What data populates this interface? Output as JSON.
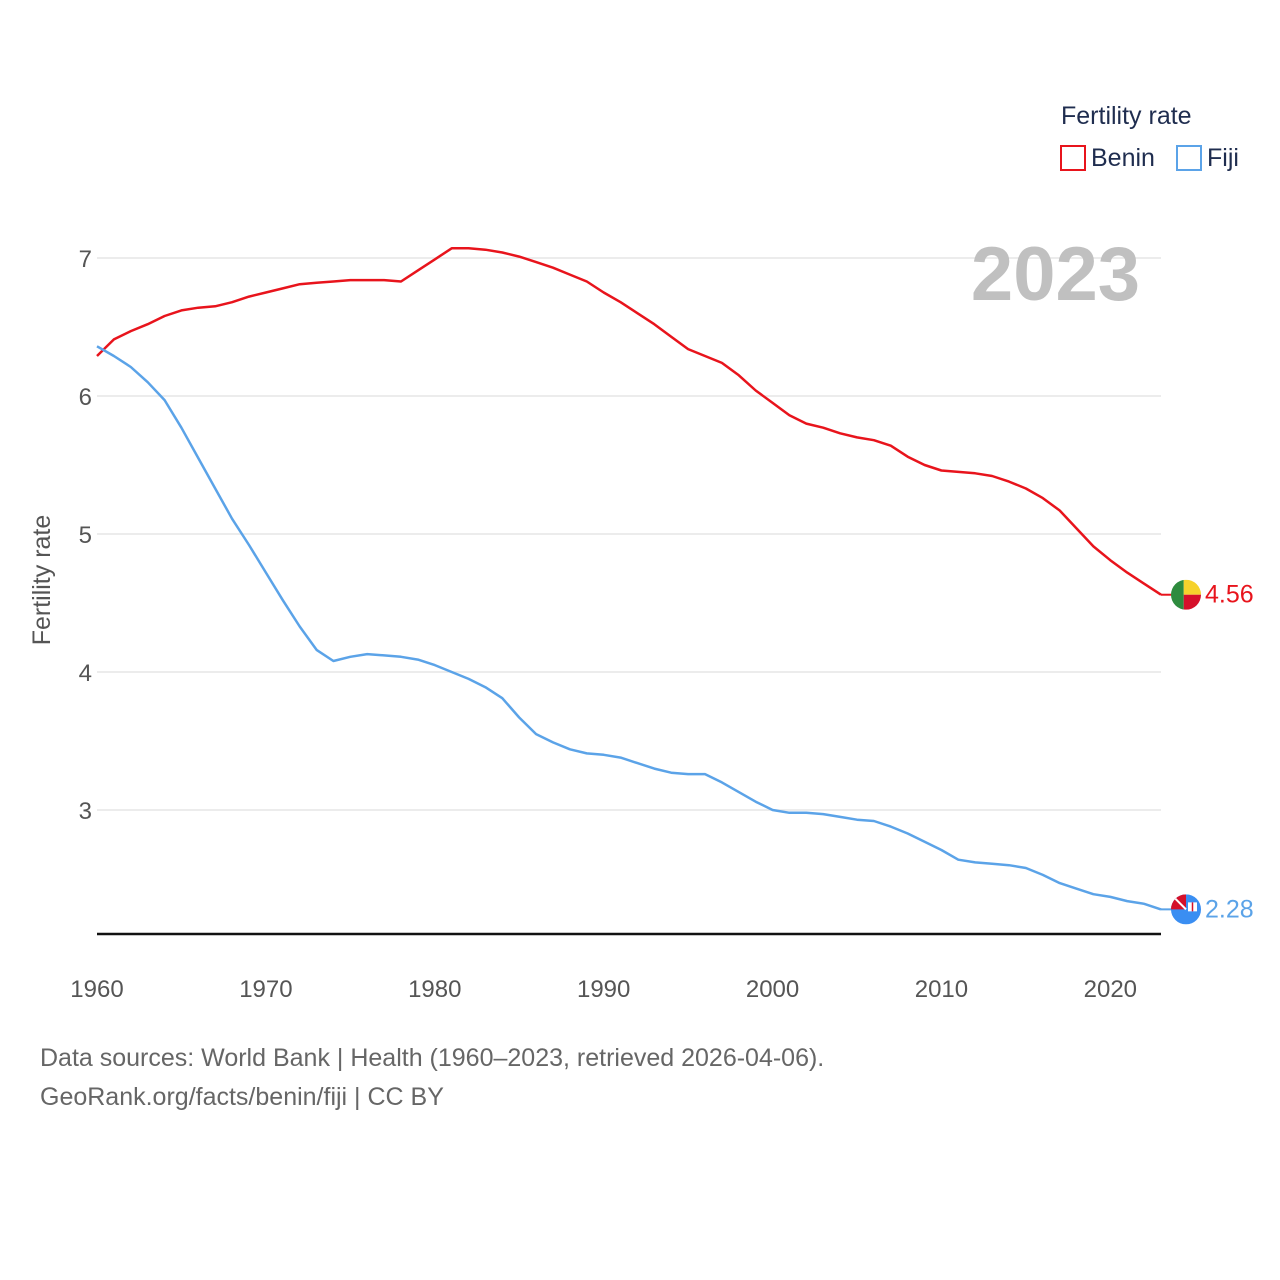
{
  "chart_data": {
    "type": "line",
    "title": "",
    "legend_title": "Fertility rate",
    "ylabel": "Fertility rate",
    "xlabel": "",
    "year_label": "2023",
    "xlim": [
      1960,
      2023
    ],
    "ylim": [
      2.1,
      7.3
    ],
    "yticks": [
      3,
      4,
      5,
      6,
      7
    ],
    "xticks": [
      1960,
      1970,
      1980,
      1990,
      2000,
      2010,
      2020
    ],
    "grid": true,
    "legend_position": "top-right",
    "x": [
      1960,
      1961,
      1962,
      1963,
      1964,
      1965,
      1966,
      1967,
      1968,
      1969,
      1970,
      1971,
      1972,
      1973,
      1974,
      1975,
      1976,
      1977,
      1978,
      1979,
      1980,
      1981,
      1982,
      1983,
      1984,
      1985,
      1986,
      1987,
      1988,
      1989,
      1990,
      1991,
      1992,
      1993,
      1994,
      1995,
      1996,
      1997,
      1998,
      1999,
      2000,
      2001,
      2002,
      2003,
      2004,
      2005,
      2006,
      2007,
      2008,
      2009,
      2010,
      2011,
      2012,
      2013,
      2014,
      2015,
      2016,
      2017,
      2018,
      2019,
      2020,
      2021,
      2022,
      2023
    ],
    "series": [
      {
        "name": "Benin",
        "color": "#e8141c",
        "end_label": "4.56",
        "flag_colors": [
          "#2e8b3e",
          "#f6d22c",
          "#d5102a"
        ],
        "values": [
          6.29,
          6.41,
          6.47,
          6.52,
          6.58,
          6.62,
          6.64,
          6.65,
          6.68,
          6.72,
          6.75,
          6.78,
          6.81,
          6.82,
          6.83,
          6.84,
          6.84,
          6.84,
          6.83,
          6.91,
          6.99,
          7.07,
          7.07,
          7.06,
          7.04,
          7.01,
          6.97,
          6.93,
          6.88,
          6.83,
          6.75,
          6.68,
          6.6,
          6.52,
          6.43,
          6.34,
          6.29,
          6.24,
          6.15,
          6.04,
          5.95,
          5.86,
          5.8,
          5.77,
          5.73,
          5.7,
          5.68,
          5.64,
          5.56,
          5.5,
          5.46,
          5.45,
          5.44,
          5.42,
          5.38,
          5.33,
          5.26,
          5.17,
          5.04,
          4.91,
          4.81,
          4.72,
          4.64,
          4.56
        ]
      },
      {
        "name": "Fiji",
        "color": "#5ba3e8",
        "end_label": "2.28",
        "flag_colors": [
          "#3a8ef2",
          "#d5102a",
          "#ffffff"
        ],
        "values": [
          6.36,
          6.29,
          6.21,
          6.1,
          5.97,
          5.77,
          5.55,
          5.33,
          5.11,
          4.92,
          4.72,
          4.52,
          4.33,
          4.16,
          4.08,
          4.11,
          4.13,
          4.12,
          4.11,
          4.09,
          4.05,
          4.0,
          3.95,
          3.89,
          3.81,
          3.67,
          3.55,
          3.49,
          3.44,
          3.41,
          3.4,
          3.38,
          3.34,
          3.3,
          3.27,
          3.26,
          3.26,
          3.2,
          3.13,
          3.06,
          3.0,
          2.98,
          2.98,
          2.97,
          2.95,
          2.93,
          2.92,
          2.88,
          2.83,
          2.77,
          2.71,
          2.64,
          2.62,
          2.61,
          2.6,
          2.58,
          2.53,
          2.47,
          2.43,
          2.39,
          2.37,
          2.34,
          2.32,
          2.28
        ]
      }
    ]
  },
  "source": {
    "line1": "Data sources: World Bank | Health (1960–2023, retrieved 2026-04-06).",
    "line2": "GeoRank.org/facts/benin/fiji | CC BY"
  }
}
